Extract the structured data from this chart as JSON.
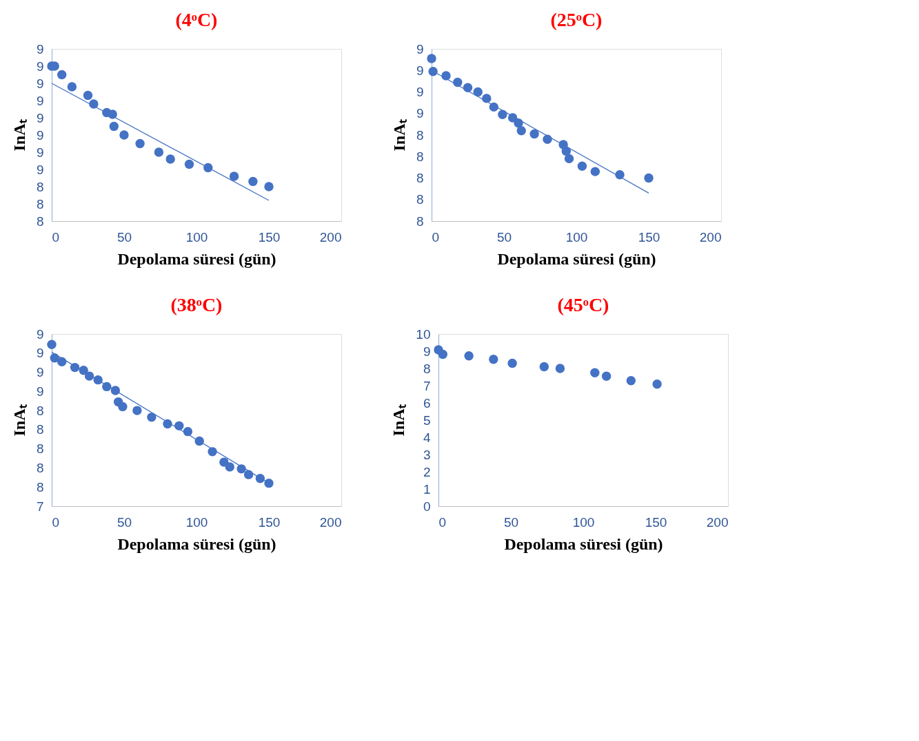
{
  "chart_data": [
    {
      "type": "scatter",
      "title": "(4ᵒC)",
      "xlabel": "Depolama süresi (gün)",
      "ylabel": "InAₜ",
      "marker": "circle",
      "grid": false,
      "xlim": [
        0,
        200
      ],
      "xticks": [
        0,
        50,
        100,
        150,
        200
      ],
      "ylim": [
        8.2,
        9.2
      ],
      "yticks": [
        {
          "value": 8.2,
          "label": "8"
        },
        {
          "value": 8.3,
          "label": "8"
        },
        {
          "value": 8.4,
          "label": "8"
        },
        {
          "value": 8.5,
          "label": "9"
        },
        {
          "value": 8.6,
          "label": "9"
        },
        {
          "value": 8.7,
          "label": "9"
        },
        {
          "value": 8.8,
          "label": "9"
        },
        {
          "value": 8.9,
          "label": "9"
        },
        {
          "value": 9.0,
          "label": "9"
        },
        {
          "value": 9.1,
          "label": "9"
        },
        {
          "value": 9.2,
          "label": "9"
        }
      ],
      "series": [
        {
          "color": "#4472c4",
          "x": [
            0,
            2,
            7,
            14,
            25,
            29,
            38,
            42,
            43,
            50,
            61,
            74,
            82,
            95,
            108,
            126,
            139,
            150
          ],
          "values": [
            9.1,
            9.1,
            9.05,
            8.98,
            8.93,
            8.88,
            8.83,
            8.82,
            8.75,
            8.7,
            8.65,
            8.6,
            8.56,
            8.53,
            8.51,
            8.46,
            8.43,
            8.4
          ]
        },
        {
          "type": "line",
          "marker": "none",
          "color": "#4472c4",
          "x": [
            0,
            150
          ],
          "values": [
            9.0,
            8.32
          ]
        }
      ]
    },
    {
      "type": "scatter",
      "title": "(25ᵒC)",
      "xlabel": "Depolama süresi (gün)",
      "ylabel": "InAₜ",
      "marker": "circle",
      "grid": false,
      "xlim": [
        0,
        200
      ],
      "xticks": [
        0,
        50,
        100,
        150,
        200
      ],
      "ylim": [
        7.6,
        9.2
      ],
      "yticks": [
        {
          "value": 7.6,
          "label": "8"
        },
        {
          "value": 7.8,
          "label": "8"
        },
        {
          "value": 8.0,
          "label": "8"
        },
        {
          "value": 8.2,
          "label": "8"
        },
        {
          "value": 8.4,
          "label": "8"
        },
        {
          "value": 8.6,
          "label": "9"
        },
        {
          "value": 8.8,
          "label": "9"
        },
        {
          "value": 9.0,
          "label": "9"
        },
        {
          "value": 9.2,
          "label": "9"
        }
      ],
      "series": [
        {
          "color": "#4472c4",
          "x": [
            0,
            1,
            10,
            18,
            25,
            32,
            38,
            43,
            49,
            56,
            60,
            62,
            71,
            80,
            91,
            93,
            95,
            104,
            113,
            130,
            150
          ],
          "values": [
            9.11,
            8.99,
            8.95,
            8.89,
            8.84,
            8.8,
            8.74,
            8.66,
            8.59,
            8.56,
            8.51,
            8.44,
            8.41,
            8.36,
            8.31,
            8.25,
            8.18,
            8.11,
            8.06,
            8.03,
            8.0
          ]
        },
        {
          "type": "line",
          "marker": "none",
          "color": "#4472c4",
          "x": [
            0,
            150
          ],
          "values": [
            9.0,
            7.86
          ]
        }
      ]
    },
    {
      "type": "scatter",
      "title": "(38ᵒC)",
      "xlabel": "Depolama süresi (gün)",
      "ylabel": "InAₜ",
      "marker": "circle",
      "grid": false,
      "xlim": [
        0,
        200
      ],
      "xticks": [
        0,
        50,
        100,
        150,
        200
      ],
      "ylim": [
        7.4,
        9.2
      ],
      "yticks": [
        {
          "value": 7.4,
          "label": "7"
        },
        {
          "value": 7.6,
          "label": "8"
        },
        {
          "value": 7.8,
          "label": "8"
        },
        {
          "value": 8.0,
          "label": "8"
        },
        {
          "value": 8.2,
          "label": "8"
        },
        {
          "value": 8.4,
          "label": "8"
        },
        {
          "value": 8.6,
          "label": "9"
        },
        {
          "value": 8.8,
          "label": "9"
        },
        {
          "value": 9.0,
          "label": "9"
        },
        {
          "value": 9.2,
          "label": "9"
        }
      ],
      "series": [
        {
          "color": "#4472c4",
          "x": [
            0,
            2,
            7,
            16,
            22,
            26,
            32,
            38,
            44,
            46,
            49,
            59,
            69,
            80,
            88,
            94,
            102,
            111,
            119,
            123,
            131,
            136,
            144,
            150
          ],
          "values": [
            9.09,
            8.95,
            8.91,
            8.85,
            8.82,
            8.76,
            8.72,
            8.65,
            8.61,
            8.49,
            8.44,
            8.4,
            8.33,
            8.26,
            8.24,
            8.18,
            8.08,
            7.97,
            7.86,
            7.81,
            7.79,
            7.73,
            7.69,
            7.64
          ]
        },
        {
          "type": "line",
          "marker": "none",
          "color": "#4472c4",
          "x": [
            0,
            150
          ],
          "values": [
            9.01,
            7.64
          ]
        }
      ]
    },
    {
      "type": "scatter",
      "title": "(45ᵒC)",
      "xlabel": "Depolama süresi (gün)",
      "ylabel": "InAₜ",
      "marker": "circle",
      "grid": false,
      "xlim": [
        0,
        200
      ],
      "xticks": [
        0,
        50,
        100,
        150,
        200
      ],
      "ylim": [
        0,
        10
      ],
      "yticks": [
        0,
        1,
        2,
        3,
        4,
        5,
        6,
        7,
        8,
        9,
        10
      ],
      "series": [
        {
          "color": "#4472c4",
          "x": [
            0,
            3,
            21,
            38,
            51,
            73,
            84,
            108,
            116,
            133,
            151
          ],
          "values": [
            9.08,
            8.82,
            8.73,
            8.53,
            8.3,
            8.1,
            8.0,
            7.75,
            7.55,
            7.29,
            7.09
          ]
        }
      ]
    }
  ]
}
